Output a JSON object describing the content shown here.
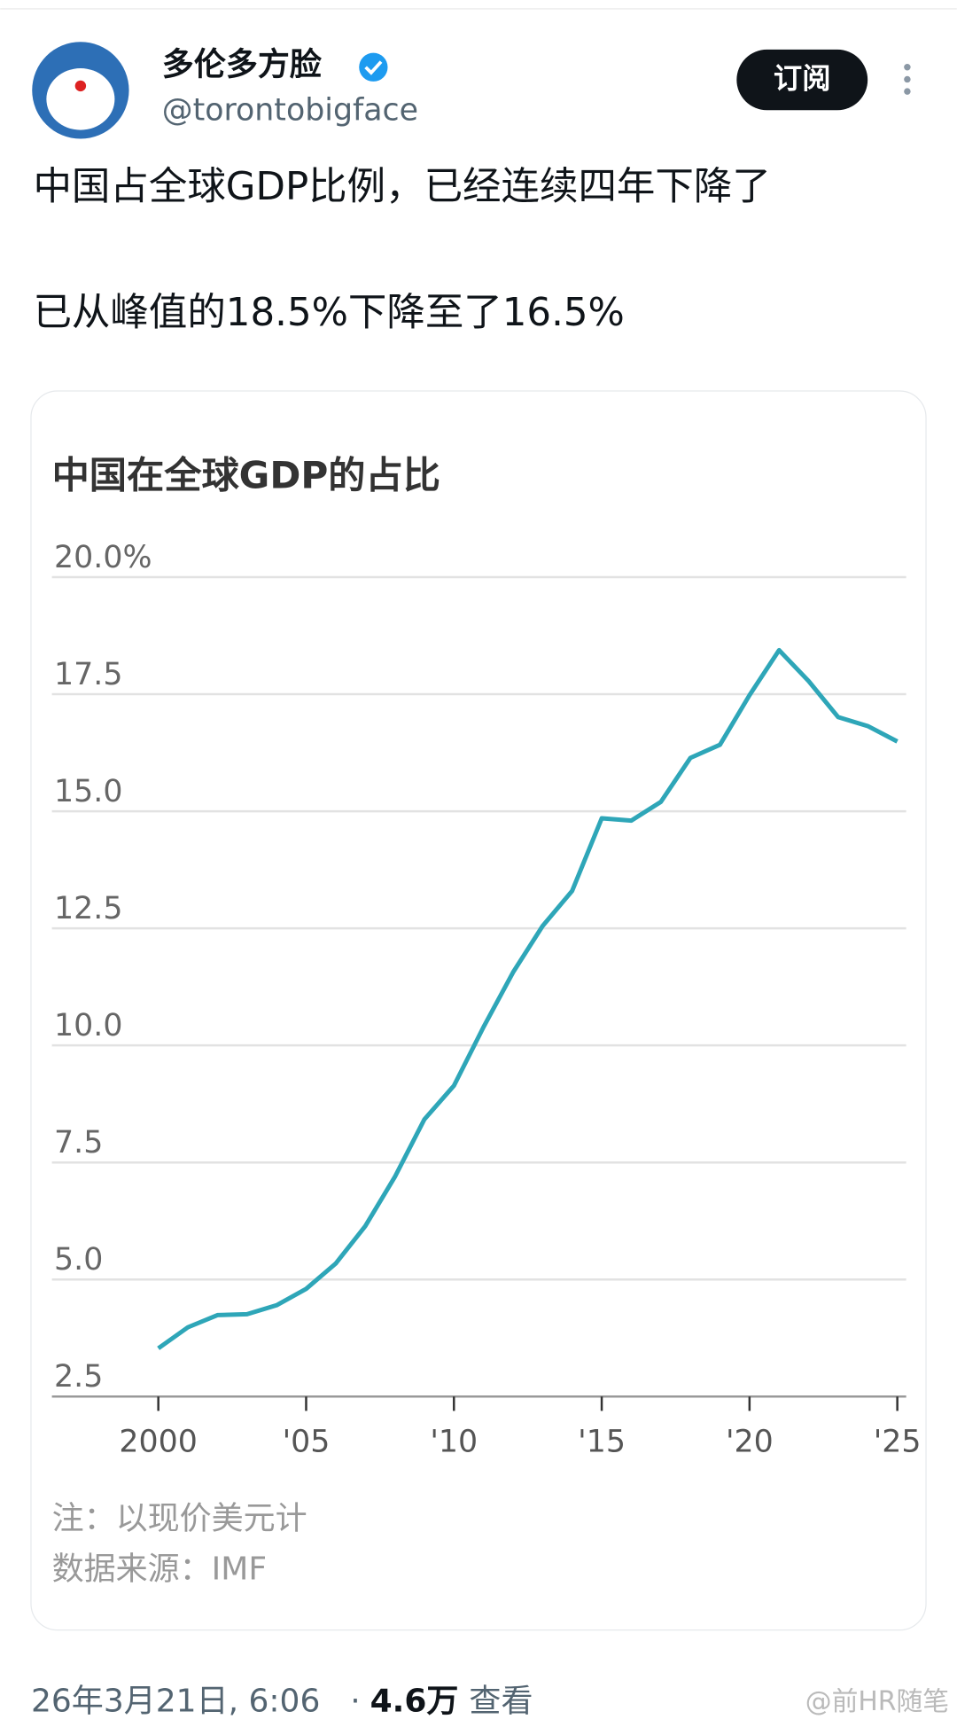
{
  "post": {
    "author": {
      "name": "多伦多方脸",
      "handle": "@torontobigface"
    },
    "subscribe": "订阅",
    "text": [
      "中国占全球GDP比例，已经连续四年下降了",
      "已从峰值的18.5%下降至了16.5%"
    ],
    "footer": {
      "date": "26年3月21日, 6:06",
      "separator": "·",
      "views": "4.6万",
      "views_label": "查看"
    },
    "watermark": "@前HR随笔"
  },
  "chart_data": {
    "type": "line",
    "title": "中国在全球GDP的占比",
    "notes": [
      "注：以现价美元计",
      "数据来源：IMF"
    ],
    "x": [
      2000,
      2001,
      2002,
      2003,
      2004,
      2005,
      2006,
      2007,
      2008,
      2009,
      2010,
      2011,
      2012,
      2013,
      2014,
      2015,
      2016,
      2017,
      2018,
      2019,
      2020,
      2021,
      2022,
      2023,
      2024,
      2025
    ],
    "series": [
      {
        "color": "#2ea6b8",
        "values": [
          3.53,
          3.98,
          4.24,
          4.26,
          4.45,
          4.8,
          5.34,
          6.14,
          7.19,
          8.42,
          9.14,
          10.39,
          11.56,
          12.55,
          13.3,
          14.85,
          14.8,
          15.2,
          16.14,
          16.42,
          17.48,
          18.44,
          17.78,
          17.01,
          16.82,
          16.49
        ]
      }
    ],
    "xlim": [
      1996.4,
      2025.3
    ],
    "xticks": [
      2000,
      {
        "value": 2005,
        "label": "'05"
      },
      {
        "value": 2010,
        "label": "'10"
      },
      {
        "value": 2015,
        "label": "'15"
      },
      {
        "value": 2020,
        "label": "'20"
      },
      {
        "value": 2025,
        "label": "'25"
      }
    ],
    "ylim": [
      2.5,
      20
    ],
    "yticks": [
      2.5,
      {
        "value": 5,
        "label": "5.0"
      },
      7.5,
      {
        "value": 10,
        "label": "10.0"
      },
      12.5,
      {
        "value": 15,
        "label": "15.0"
      },
      17.5,
      {
        "value": 20,
        "label": "20.0%"
      }
    ],
    "grid": true
  }
}
